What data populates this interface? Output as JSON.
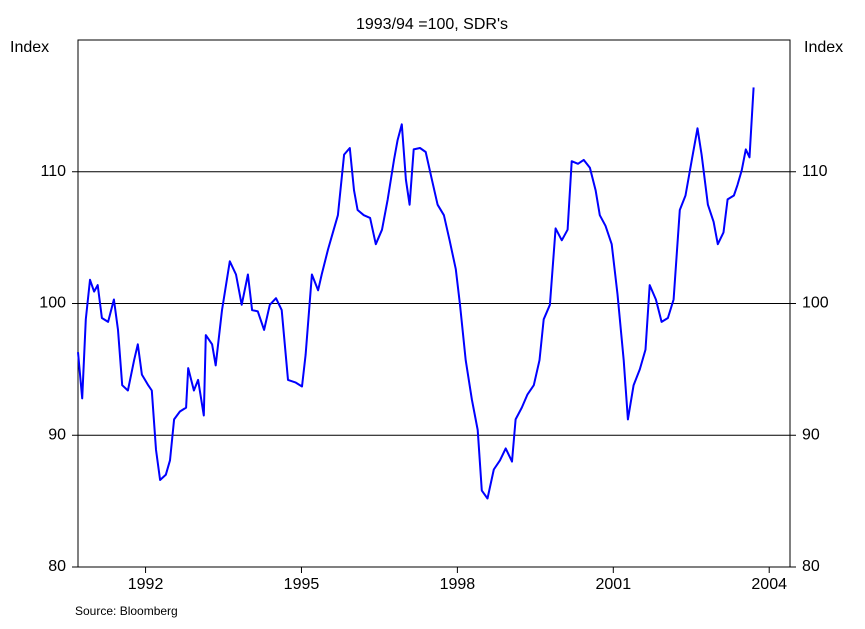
{
  "chart_data": {
    "type": "line",
    "subtitle": "1993/94 =100, SDR's",
    "y_label": "Index",
    "y2_label": "Index",
    "source": "Source: Bloomberg",
    "xlim": [
      1990.7,
      2004.4
    ],
    "xticks": [
      1992,
      1995,
      1998,
      2001,
      2004
    ],
    "ylim": [
      80,
      120
    ],
    "yticks": [
      80,
      90,
      100,
      110
    ],
    "grid": true,
    "series": [
      {
        "name": "Index",
        "color": "#0000ff",
        "x": [
          1990.7,
          1990.78,
          1990.85,
          1990.93,
          1991.01,
          1991.08,
          1991.16,
          1991.28,
          1991.39,
          1991.47,
          1991.55,
          1991.66,
          1991.78,
          1991.85,
          1991.93,
          1992.05,
          1992.12,
          1992.2,
          1992.28,
          1992.39,
          1992.47,
          1992.55,
          1992.66,
          1992.78,
          1992.82,
          1992.93,
          1993.01,
          1993.12,
          1993.16,
          1993.28,
          1993.35,
          1993.47,
          1993.62,
          1993.74,
          1993.85,
          1993.97,
          1994.05,
          1994.16,
          1994.28,
          1994.39,
          1994.51,
          1994.62,
          1994.74,
          1994.89,
          1995.01,
          1995.08,
          1995.2,
          1995.32,
          1995.39,
          1995.51,
          1995.62,
          1995.7,
          1995.82,
          1995.93,
          1996.01,
          1996.08,
          1996.2,
          1996.32,
          1996.43,
          1996.55,
          1996.66,
          1996.78,
          1996.85,
          1996.93,
          1997.01,
          1997.08,
          1997.16,
          1997.28,
          1997.39,
          1997.51,
          1997.62,
          1997.74,
          1997.85,
          1997.97,
          1998.05,
          1998.16,
          1998.28,
          1998.39,
          1998.47,
          1998.58,
          1998.7,
          1998.82,
          1998.93,
          1999.05,
          1999.12,
          1999.24,
          1999.35,
          1999.47,
          1999.58,
          1999.66,
          1999.78,
          1999.89,
          2000.01,
          2000.12,
          2000.2,
          2000.32,
          2000.43,
          2000.55,
          2000.66,
          2000.74,
          2000.85,
          2000.97,
          2001.08,
          2001.2,
          2001.28,
          2001.39,
          2001.51,
          2001.62,
          2001.7,
          2001.82,
          2001.93,
          2002.05,
          2002.16,
          2002.28,
          2002.39,
          2002.51,
          2002.62,
          2002.7,
          2002.82,
          2002.93,
          2003.01,
          2003.12,
          2003.2,
          2003.32,
          2003.39,
          2003.47,
          2003.55,
          2003.62,
          2003.7
        ],
        "values": [
          96.3,
          92.8,
          98.8,
          101.8,
          100.9,
          101.4,
          98.9,
          98.6,
          100.3,
          98.0,
          93.8,
          93.4,
          95.7,
          96.9,
          94.6,
          93.8,
          93.4,
          88.9,
          86.6,
          87.0,
          88.1,
          91.2,
          91.8,
          92.1,
          95.1,
          93.4,
          94.2,
          91.5,
          97.6,
          96.9,
          95.3,
          99.5,
          103.2,
          102.2,
          99.9,
          102.2,
          99.5,
          99.4,
          98.0,
          99.9,
          100.4,
          99.5,
          94.2,
          94.0,
          93.7,
          96.1,
          102.2,
          101.0,
          102.2,
          104.1,
          105.6,
          106.7,
          111.3,
          111.8,
          108.6,
          107.1,
          106.7,
          106.5,
          104.5,
          105.6,
          107.9,
          110.9,
          112.4,
          113.6,
          109.4,
          107.5,
          111.7,
          111.8,
          111.5,
          109.4,
          107.5,
          106.7,
          104.8,
          102.6,
          99.9,
          95.7,
          92.7,
          90.4,
          85.8,
          85.2,
          87.4,
          88.1,
          89.0,
          88.0,
          91.2,
          92.1,
          93.1,
          93.8,
          95.7,
          98.8,
          99.9,
          105.7,
          104.8,
          105.6,
          110.8,
          110.6,
          110.9,
          110.3,
          108.6,
          106.7,
          105.9,
          104.5,
          100.7,
          95.7,
          91.2,
          93.8,
          95.0,
          96.5,
          101.4,
          100.3,
          98.6,
          98.9,
          100.3,
          107.1,
          108.2,
          110.9,
          113.3,
          111.3,
          107.5,
          106.2,
          104.5,
          105.4,
          107.9,
          108.2,
          109.0,
          110.1,
          111.7,
          111.1,
          116.4
        ]
      }
    ]
  }
}
